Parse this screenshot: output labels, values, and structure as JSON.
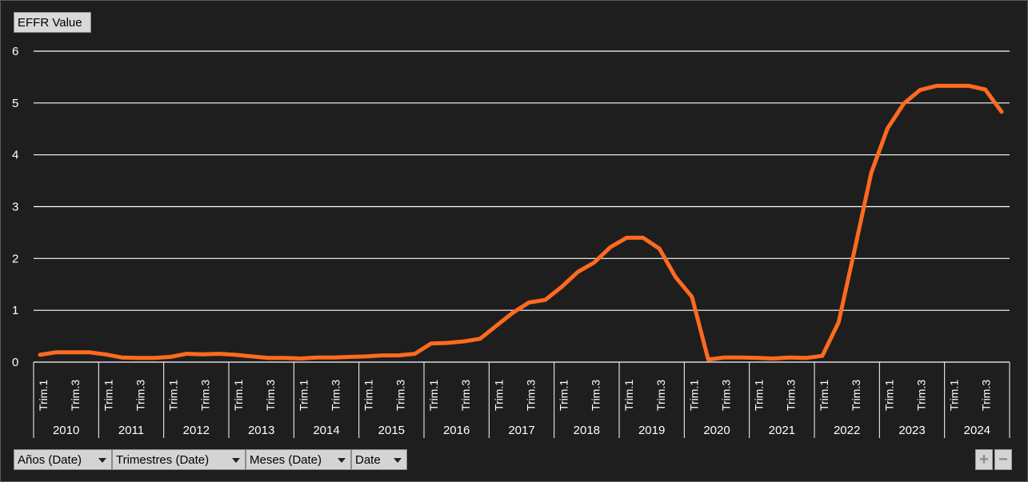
{
  "chart_data": {
    "type": "line",
    "value_field_label": "EFFR Value",
    "y_ticks": [
      "0",
      "1",
      "2",
      "3",
      "4",
      "5",
      "6"
    ],
    "ylim": [
      0,
      6
    ],
    "grid": true,
    "line_color": "#ff6a1f",
    "years": [
      "2010",
      "2011",
      "2012",
      "2013",
      "2014",
      "2015",
      "2016",
      "2017",
      "2018",
      "2019",
      "2020",
      "2021",
      "2022",
      "2023",
      "2024"
    ],
    "quarter_tick_labels": [
      "Trim.1",
      "Trim.3"
    ],
    "series": [
      {
        "values": [
          0.14,
          0.19,
          0.19,
          0.19,
          0.15,
          0.09,
          0.08,
          0.08,
          0.1,
          0.16,
          0.15,
          0.16,
          0.14,
          0.11,
          0.08,
          0.08,
          0.07,
          0.09,
          0.09,
          0.1,
          0.11,
          0.13,
          0.13,
          0.16,
          0.36,
          0.37,
          0.4,
          0.45,
          0.7,
          0.95,
          1.15,
          1.2,
          1.45,
          1.74,
          1.92,
          2.22,
          2.4,
          2.4,
          2.19,
          1.64,
          1.26,
          0.05,
          0.09,
          0.09,
          0.08,
          0.07,
          0.09,
          0.08,
          0.12,
          0.77,
          2.19,
          3.65,
          4.51,
          4.99,
          5.25,
          5.33,
          5.33,
          5.33,
          5.26,
          4.83
        ]
      }
    ]
  },
  "field_buttons": [
    {
      "label": "Años (Date)"
    },
    {
      "label": "Trimestres (Date)"
    },
    {
      "label": "Meses (Date)"
    },
    {
      "label": "Date"
    }
  ],
  "zoom": {
    "plus": "+",
    "minus": "−"
  }
}
